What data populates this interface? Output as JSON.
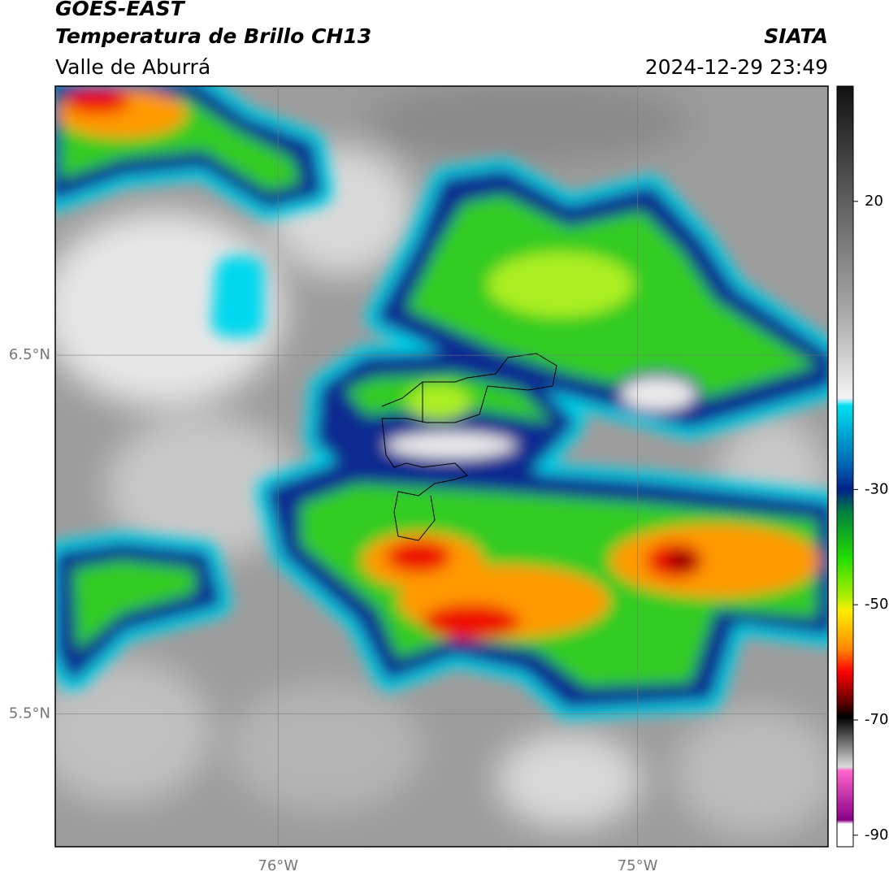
{
  "header": {
    "title": "GOES-EAST",
    "subtitle": "Temperatura de Brillo CH13",
    "region": "Valle de Aburrá",
    "source": "SIATA",
    "timestamp": "2024-12-29 23:49"
  },
  "map": {
    "xlim": [
      -76.62,
      -74.47
    ],
    "ylim": [
      5.13,
      7.25
    ],
    "xticks": [
      {
        "value": -76,
        "label": "76°W"
      },
      {
        "value": -75,
        "label": "75°W"
      }
    ],
    "yticks": [
      {
        "value": 6.5,
        "label": "6.5°N"
      },
      {
        "value": 5.5,
        "label": "5.5°N"
      }
    ],
    "grid": true
  },
  "colorbar": {
    "lim": [
      -92,
      40
    ],
    "ticks": [
      20,
      -30,
      -50,
      -70,
      -90
    ]
  }
}
